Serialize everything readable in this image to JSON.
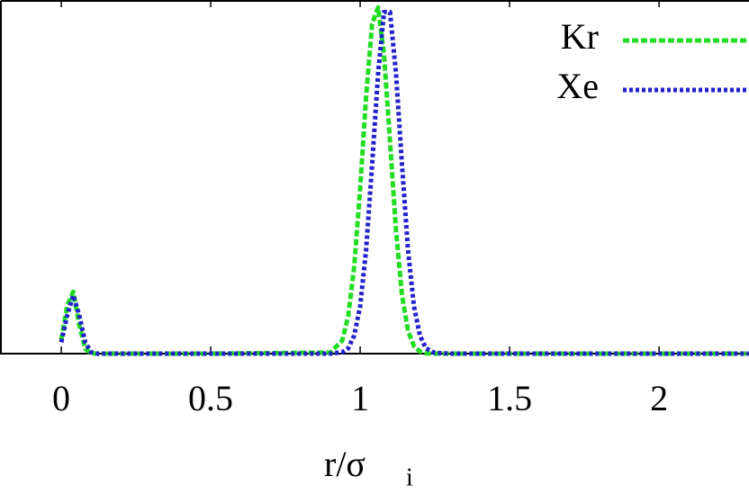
{
  "chart_data": {
    "type": "line",
    "xlabel": "r/σ",
    "xlabel_sub": "i",
    "x": [
      0,
      0.02,
      0.04,
      0.06,
      0.08,
      0.1,
      0.12,
      0.15,
      0.2,
      0.5,
      0.9,
      0.94,
      0.96,
      0.98,
      1.0,
      1.02,
      1.04,
      1.06,
      1.08,
      1.1,
      1.12,
      1.14,
      1.16,
      1.18,
      1.2,
      1.22,
      1.25,
      1.3,
      1.5,
      2.0,
      2.3
    ],
    "series": [
      {
        "name": "Kr",
        "color": "#22dd22",
        "values": [
          0.039,
          0.136,
          0.175,
          0.082,
          0.014,
          0.001,
          0,
          0,
          0,
          0,
          0.003,
          0.037,
          0.106,
          0.245,
          0.467,
          0.728,
          0.932,
          0.979,
          0.844,
          0.598,
          0.348,
          0.166,
          0.065,
          0.021,
          0.006,
          0.001,
          0,
          0,
          0,
          0,
          0
        ]
      },
      {
        "name": "Xe",
        "color": "#2222cc",
        "values": [
          0.032,
          0.109,
          0.165,
          0.109,
          0.032,
          0.004,
          0,
          0,
          0,
          0,
          0,
          0.004,
          0.015,
          0.051,
          0.134,
          0.294,
          0.534,
          0.792,
          0.966,
          0.966,
          0.792,
          0.534,
          0.294,
          0.134,
          0.051,
          0.015,
          0.002,
          0,
          0,
          0,
          0
        ]
      }
    ],
    "xlim": [
      -0.205,
      2.301
    ],
    "xticks": [
      0,
      0.5,
      1,
      1.5,
      2
    ],
    "ylim": [
      0,
      1
    ],
    "legend": "top-right"
  }
}
